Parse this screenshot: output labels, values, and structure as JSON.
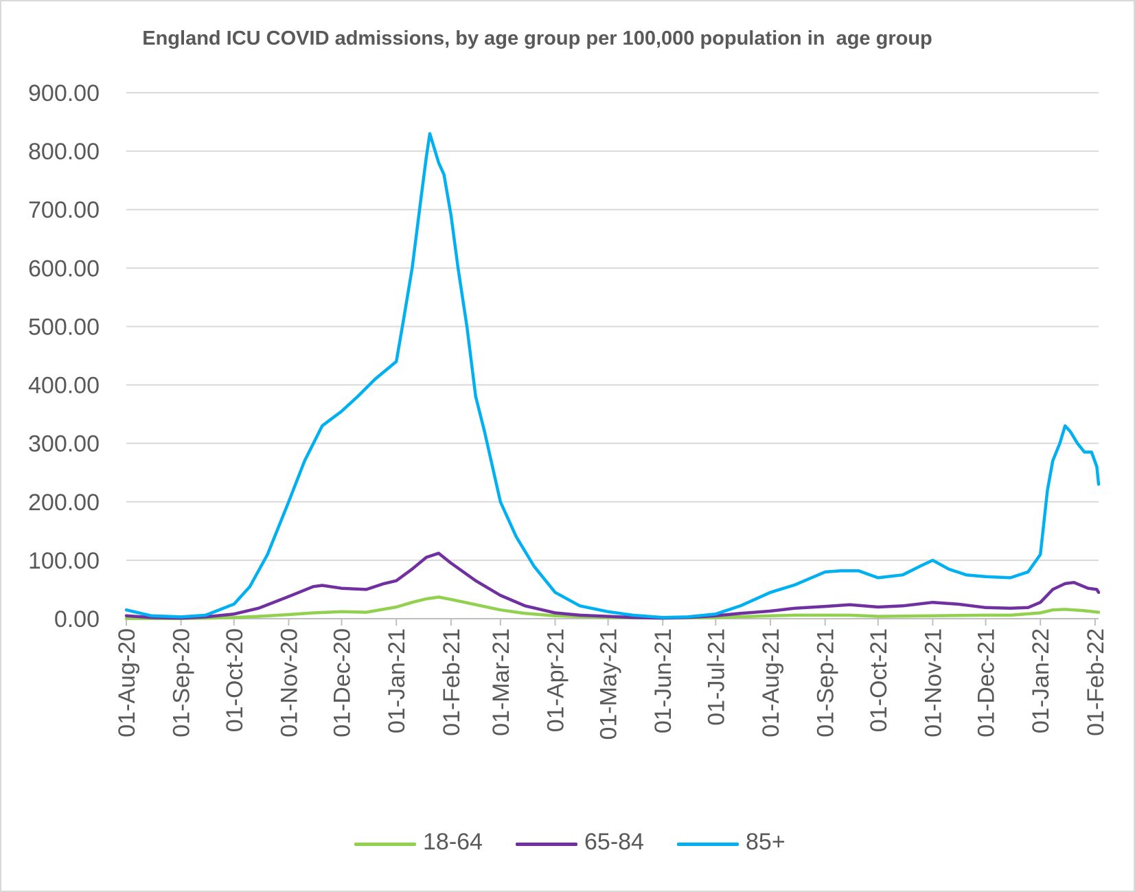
{
  "chart_data": {
    "type": "line",
    "title": "England ICU COVID admissions, by age group per 100,000 population in  age group",
    "xlabel": "",
    "ylabel": "",
    "ylim": [
      0,
      900
    ],
    "y_ticks": [
      "0.00",
      "100.00",
      "200.00",
      "300.00",
      "400.00",
      "500.00",
      "600.00",
      "700.00",
      "800.00",
      "900.00"
    ],
    "x_range": [
      "2020-08-01",
      "2022-02-03"
    ],
    "x_ticks": [
      {
        "date": "2020-08-01",
        "label": "01-Aug-20"
      },
      {
        "date": "2020-09-01",
        "label": "01-Sep-20"
      },
      {
        "date": "2020-10-01",
        "label": "01-Oct-20"
      },
      {
        "date": "2020-11-01",
        "label": "01-Nov-20"
      },
      {
        "date": "2020-12-01",
        "label": "01-Dec-20"
      },
      {
        "date": "2021-01-01",
        "label": "01-Jan-21"
      },
      {
        "date": "2021-02-01",
        "label": "01-Feb-21"
      },
      {
        "date": "2021-03-01",
        "label": "01-Mar-21"
      },
      {
        "date": "2021-04-01",
        "label": "01-Apr-21"
      },
      {
        "date": "2021-05-01",
        "label": "01-May-21"
      },
      {
        "date": "2021-06-01",
        "label": "01-Jun-21"
      },
      {
        "date": "2021-07-01",
        "label": "01-Jul-21"
      },
      {
        "date": "2021-08-01",
        "label": "01-Aug-21"
      },
      {
        "date": "2021-09-01",
        "label": "01-Sep-21"
      },
      {
        "date": "2021-10-01",
        "label": "01-Oct-21"
      },
      {
        "date": "2021-11-01",
        "label": "01-Nov-21"
      },
      {
        "date": "2021-12-01",
        "label": "01-Dec-21"
      },
      {
        "date": "2022-01-01",
        "label": "01-Jan-22"
      },
      {
        "date": "2022-02-01",
        "label": "01-Feb-22"
      }
    ],
    "grid": true,
    "legend_position": "bottom",
    "series": [
      {
        "name": "18-64",
        "color": "#92d050",
        "x": [
          "2020-08-01",
          "2020-09-01",
          "2020-09-15",
          "2020-10-01",
          "2020-10-15",
          "2020-11-01",
          "2020-11-15",
          "2020-12-01",
          "2020-12-15",
          "2021-01-01",
          "2021-01-10",
          "2021-01-18",
          "2021-01-25",
          "2021-02-01",
          "2021-02-15",
          "2021-03-01",
          "2021-03-15",
          "2021-04-01",
          "2021-05-01",
          "2021-06-01",
          "2021-07-01",
          "2021-08-01",
          "2021-08-15",
          "2021-09-01",
          "2021-09-15",
          "2021-10-01",
          "2021-11-01",
          "2021-12-01",
          "2021-12-15",
          "2022-01-01",
          "2022-01-08",
          "2022-01-15",
          "2022-01-25",
          "2022-02-03"
        ],
        "y": [
          0.5,
          0.3,
          0.8,
          2,
          4,
          7,
          10,
          12,
          11,
          20,
          28,
          34,
          37,
          33,
          24,
          15,
          9,
          5,
          2,
          1,
          2,
          5,
          6,
          6,
          6,
          4,
          5,
          6,
          6,
          10,
          15,
          16,
          14,
          11
        ]
      },
      {
        "name": "65-84",
        "color": "#7030a0",
        "x": [
          "2020-08-01",
          "2020-08-15",
          "2020-09-01",
          "2020-09-15",
          "2020-10-01",
          "2020-10-15",
          "2020-11-01",
          "2020-11-15",
          "2020-11-20",
          "2020-12-01",
          "2020-12-15",
          "2020-12-25",
          "2021-01-01",
          "2021-01-10",
          "2021-01-18",
          "2021-01-25",
          "2021-02-01",
          "2021-02-15",
          "2021-03-01",
          "2021-03-15",
          "2021-04-01",
          "2021-04-15",
          "2021-05-01",
          "2021-05-15",
          "2021-06-01",
          "2021-06-15",
          "2021-07-01",
          "2021-07-15",
          "2021-08-01",
          "2021-08-15",
          "2021-09-01",
          "2021-09-15",
          "2021-10-01",
          "2021-10-15",
          "2021-11-01",
          "2021-11-15",
          "2021-12-01",
          "2021-12-15",
          "2021-12-25",
          "2022-01-01",
          "2022-01-08",
          "2022-01-15",
          "2022-01-20",
          "2022-01-28",
          "2022-02-02",
          "2022-02-03"
        ],
        "y": [
          5,
          2,
          1,
          3,
          8,
          18,
          38,
          55,
          57,
          52,
          50,
          60,
          65,
          85,
          105,
          112,
          95,
          65,
          40,
          22,
          10,
          6,
          4,
          2,
          1,
          2,
          5,
          9,
          13,
          18,
          21,
          24,
          20,
          22,
          28,
          25,
          19,
          18,
          19,
          28,
          50,
          60,
          62,
          52,
          50,
          45
        ]
      },
      {
        "name": "85+",
        "color": "#00b0f0",
        "x": [
          "2020-08-01",
          "2020-08-15",
          "2020-09-01",
          "2020-09-15",
          "2020-10-01",
          "2020-10-10",
          "2020-10-20",
          "2020-11-01",
          "2020-11-10",
          "2020-11-20",
          "2020-12-01",
          "2020-12-10",
          "2020-12-20",
          "2021-01-01",
          "2021-01-05",
          "2021-01-10",
          "2021-01-15",
          "2021-01-18",
          "2021-01-20",
          "2021-01-25",
          "2021-01-28",
          "2021-02-01",
          "2021-02-05",
          "2021-02-10",
          "2021-02-15",
          "2021-02-20",
          "2021-03-01",
          "2021-03-10",
          "2021-03-20",
          "2021-04-01",
          "2021-04-15",
          "2021-05-01",
          "2021-05-15",
          "2021-06-01",
          "2021-06-15",
          "2021-07-01",
          "2021-07-15",
          "2021-08-01",
          "2021-08-15",
          "2021-09-01",
          "2021-09-10",
          "2021-09-20",
          "2021-10-01",
          "2021-10-15",
          "2021-10-25",
          "2021-11-01",
          "2021-11-10",
          "2021-11-20",
          "2021-12-01",
          "2021-12-15",
          "2021-12-25",
          "2022-01-01",
          "2022-01-05",
          "2022-01-08",
          "2022-01-12",
          "2022-01-15",
          "2022-01-18",
          "2022-01-22",
          "2022-01-26",
          "2022-01-30",
          "2022-02-02",
          "2022-02-03"
        ],
        "y": [
          15,
          5,
          3,
          6,
          25,
          55,
          110,
          200,
          270,
          330,
          355,
          380,
          410,
          440,
          510,
          600,
          720,
          790,
          830,
          780,
          760,
          690,
          600,
          500,
          380,
          320,
          200,
          140,
          90,
          45,
          22,
          12,
          6,
          2,
          3,
          8,
          22,
          45,
          58,
          80,
          82,
          82,
          70,
          75,
          90,
          100,
          85,
          75,
          72,
          70,
          80,
          110,
          220,
          270,
          300,
          330,
          320,
          300,
          285,
          285,
          260,
          230
        ]
      }
    ]
  }
}
